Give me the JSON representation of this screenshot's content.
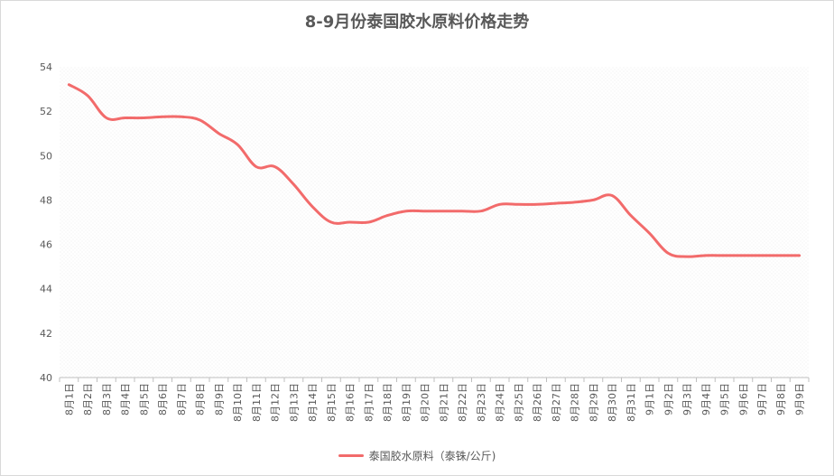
{
  "chart_data": {
    "type": "line",
    "title": "8-9月份泰国胶水原料价格走势",
    "ylim": [
      40,
      54
    ],
    "yticks": [
      40,
      42,
      44,
      46,
      48,
      50,
      52,
      54
    ],
    "grid": false,
    "legend_position": "bottom",
    "categories": [
      "8月1日",
      "8月2日",
      "8月3日",
      "8月4日",
      "8月5日",
      "8月6日",
      "8月7日",
      "8月8日",
      "8月9日",
      "8月10日",
      "8月11日",
      "8月12日",
      "8月13日",
      "8月14日",
      "8月15日",
      "8月16日",
      "8月17日",
      "8月18日",
      "8月19日",
      "8月20日",
      "8月21日",
      "8月22日",
      "8月23日",
      "8月24日",
      "8月25日",
      "8月26日",
      "8月27日",
      "8月28日",
      "8月29日",
      "8月30日",
      "8月31日",
      "9月1日",
      "9月2日",
      "9月3日",
      "9月4日",
      "9月5日",
      "9月6日",
      "9月7日",
      "9月8日",
      "9月9日"
    ],
    "series": [
      {
        "name": "泰国胶水原料（泰铢/公斤)",
        "color": "#f26b6b",
        "values": [
          53.2,
          52.7,
          51.7,
          51.7,
          51.7,
          51.75,
          51.75,
          51.6,
          51.0,
          50.5,
          49.5,
          49.5,
          48.7,
          47.7,
          47.0,
          47.0,
          47.0,
          47.3,
          47.5,
          47.5,
          47.5,
          47.5,
          47.5,
          47.8,
          47.8,
          47.8,
          47.85,
          47.9,
          48.0,
          48.2,
          47.3,
          46.5,
          45.6,
          45.45,
          45.5,
          45.5,
          45.5,
          45.5,
          45.5,
          45.5
        ]
      }
    ]
  }
}
